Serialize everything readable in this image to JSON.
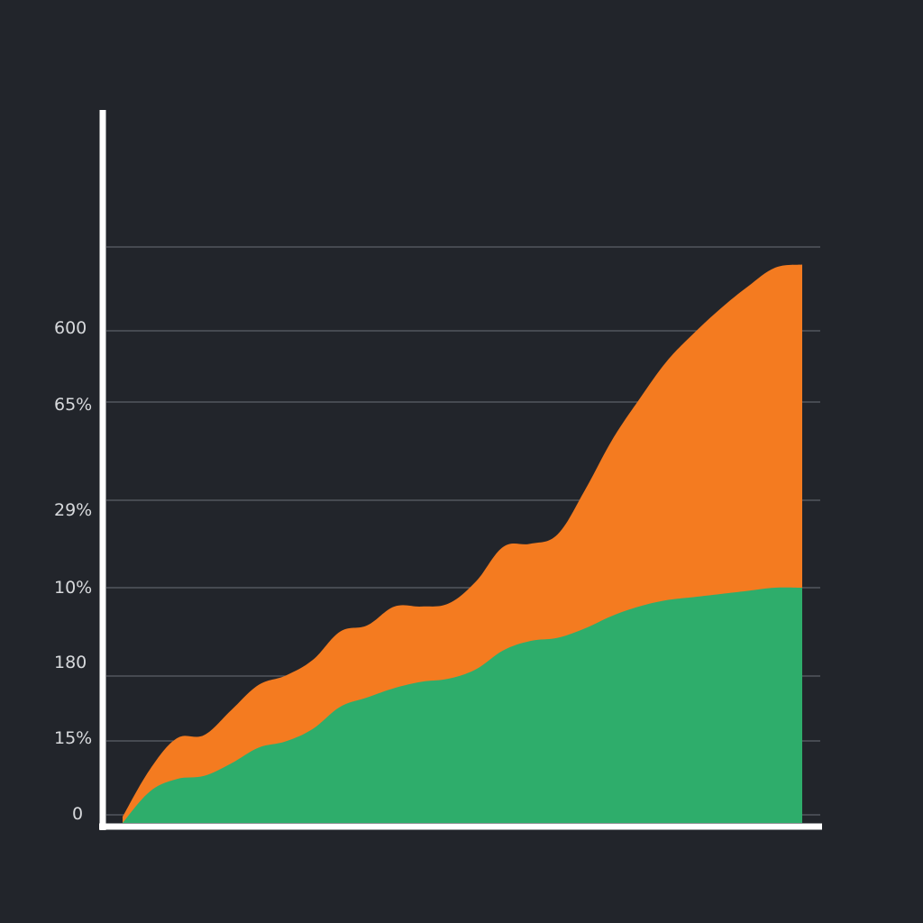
{
  "colors": {
    "background": "#22252b",
    "axis": "#ffffff",
    "grid": "#5c6068",
    "top_area": "#f47b20",
    "bottom_area": "#2ead6b",
    "tick_text": "#d7d9dc"
  },
  "chart_data": {
    "type": "area",
    "stacked": true,
    "grid": true,
    "legend": "none",
    "y_tick_labels": [
      "0",
      "15%",
      "180",
      "10%",
      "29%",
      "65%",
      "600"
    ],
    "x": [
      0,
      1,
      2,
      3,
      4,
      5,
      6,
      7,
      8,
      9,
      10,
      11,
      12,
      13,
      14,
      15,
      16,
      17,
      18,
      19,
      20,
      21,
      22,
      23,
      24,
      25
    ],
    "xlim": [
      0,
      25
    ],
    "ylim": [
      0,
      100
    ],
    "series": [
      {
        "color": "#2ead6b",
        "values": [
          0,
          5,
          7,
          7.5,
          9.5,
          12,
          13,
          15,
          18.5,
          20,
          21.5,
          22.5,
          23,
          24.5,
          27.5,
          29,
          29.5,
          31,
          33,
          34.5,
          35.5,
          36,
          36.5,
          37,
          37.5,
          37.5
        ]
      },
      {
        "color": "#f47b20",
        "values": [
          1,
          3.5,
          6.5,
          6.5,
          8.5,
          10,
          10.5,
          11,
          12,
          11.5,
          13,
          12,
          12,
          14,
          16.5,
          15.5,
          16.5,
          22,
          28,
          33,
          38,
          42,
          45.5,
          48.5,
          51,
          51.5
        ]
      }
    ]
  }
}
